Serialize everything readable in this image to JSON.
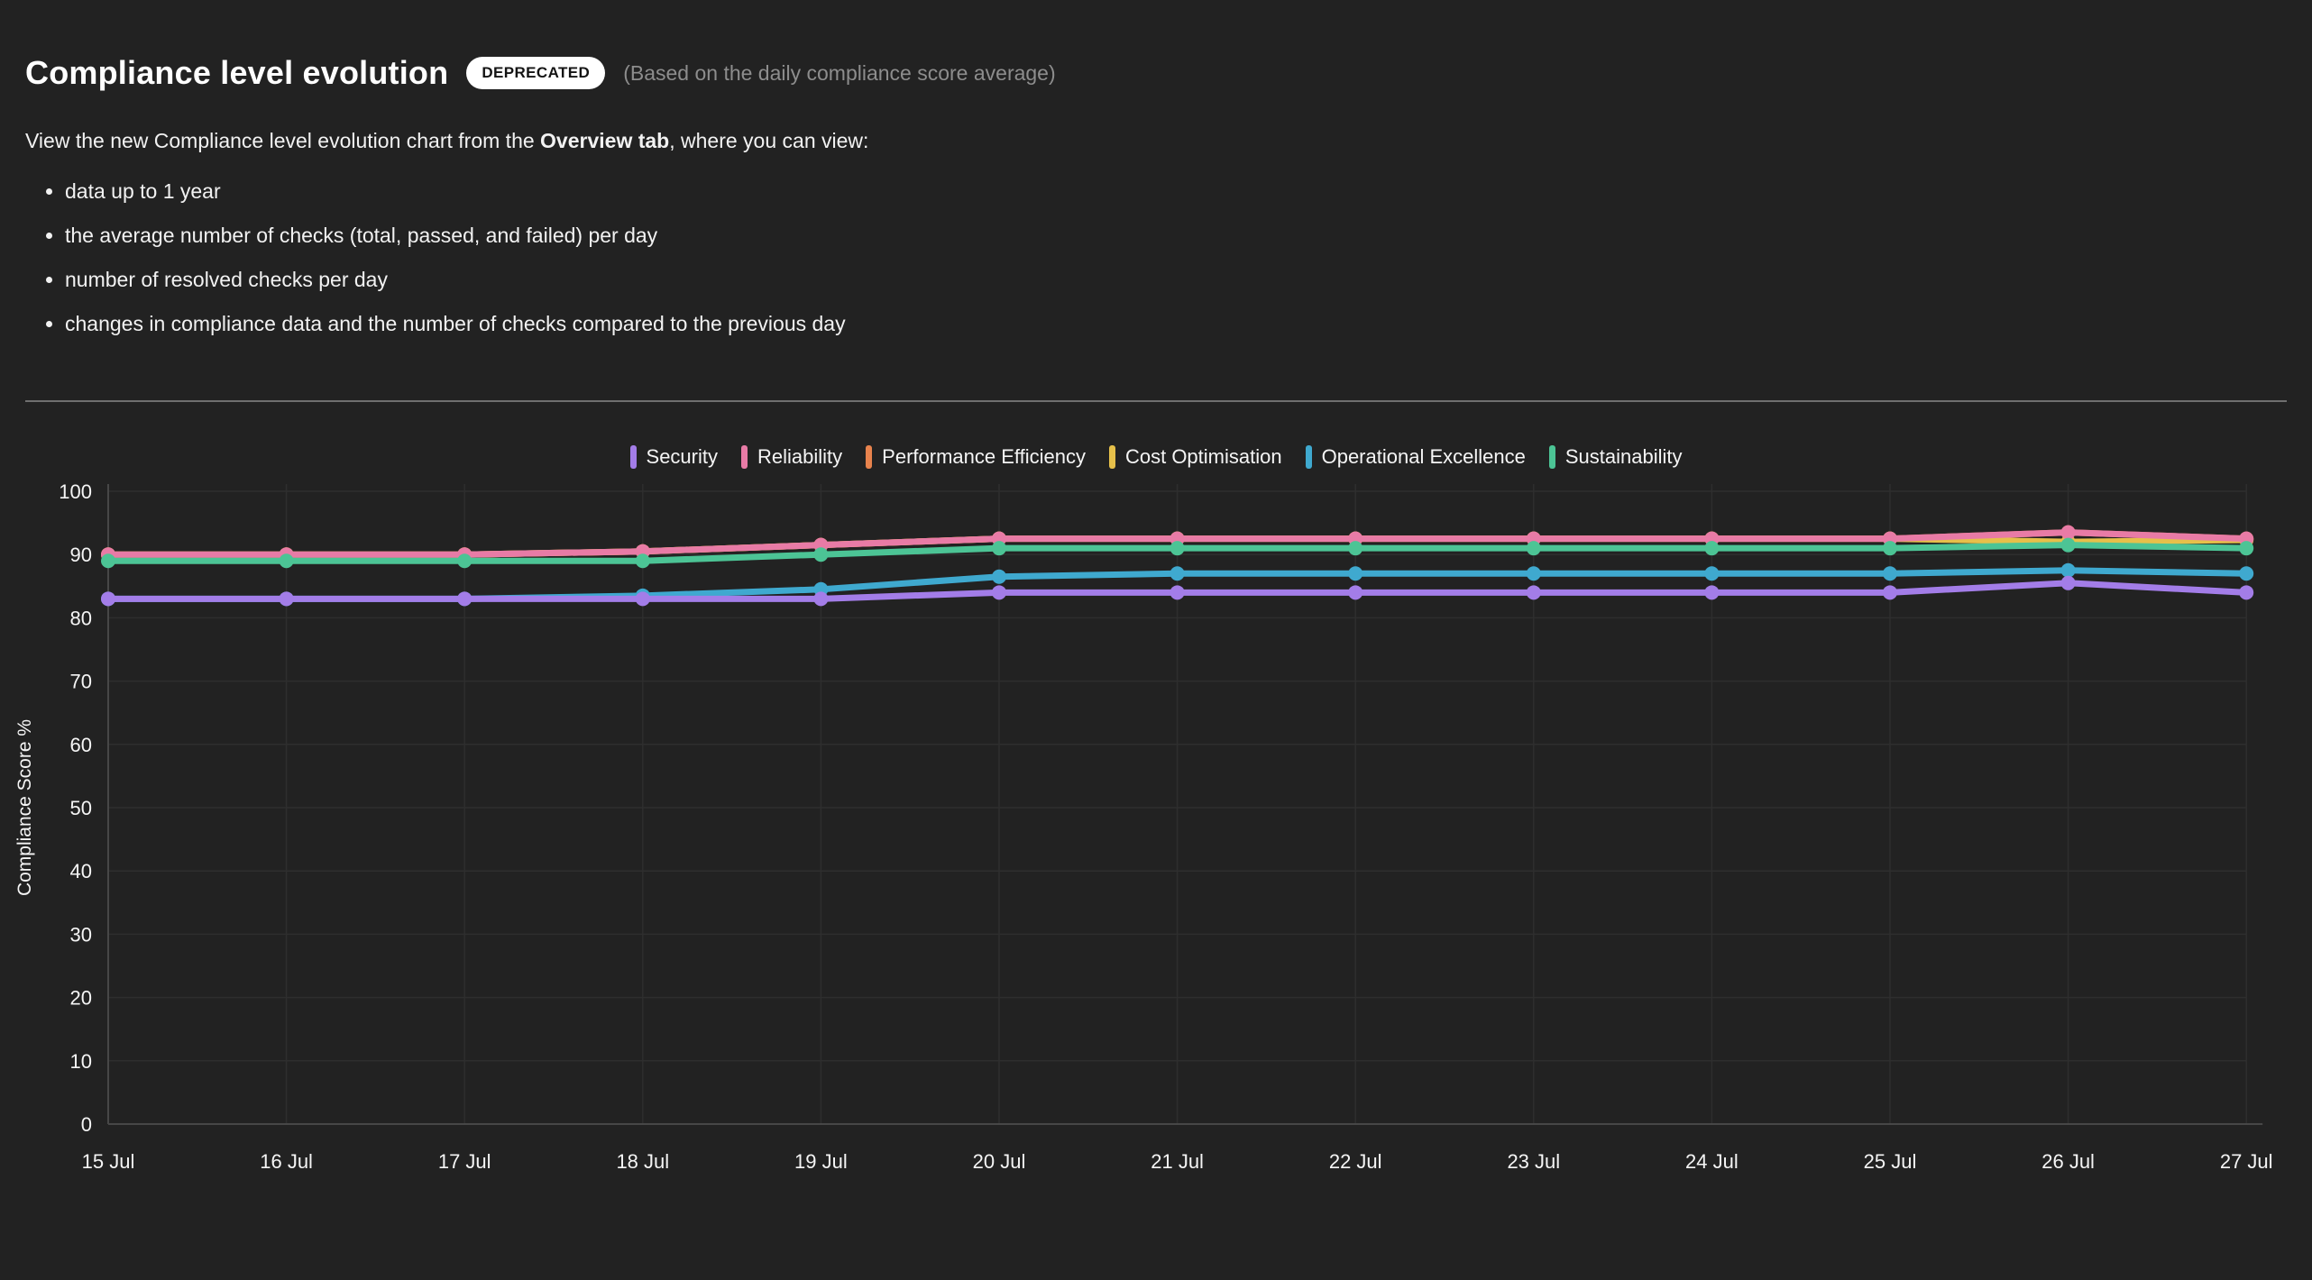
{
  "header": {
    "title": "Compliance level evolution",
    "badge": "DEPRECATED",
    "subtitle": "(Based on the daily compliance score average)",
    "description_prefix": "View the new Compliance level evolution chart from the ",
    "description_bold": "Overview tab",
    "description_suffix": ", where you can view:",
    "bullets": [
      "data up to 1 year",
      "the average number of checks (total, passed, and failed) per day",
      "number of resolved checks per day",
      "changes in compliance data and the number of checks compared to the previous day"
    ]
  },
  "chart_data": {
    "type": "line",
    "title": "",
    "xlabel": "",
    "ylabel": "Compliance Score %",
    "ylim": [
      0,
      100
    ],
    "y_ticks": [
      0,
      10,
      20,
      30,
      40,
      50,
      60,
      70,
      80,
      90,
      100
    ],
    "grid": true,
    "legend_position": "top",
    "marker": "circle",
    "categories": [
      "15 Jul",
      "16 Jul",
      "17 Jul",
      "18 Jul",
      "19 Jul",
      "20 Jul",
      "21 Jul",
      "22 Jul",
      "23 Jul",
      "24 Jul",
      "25 Jul",
      "26 Jul",
      "27 Jul"
    ],
    "series": [
      {
        "name": "Security",
        "color": "#a37de8",
        "values": [
          83,
          83,
          83,
          83,
          83,
          84,
          84,
          84,
          84,
          84,
          84,
          85.5,
          84
        ]
      },
      {
        "name": "Reliability",
        "color": "#e87ba6",
        "values": [
          90,
          90,
          90,
          90.5,
          91.5,
          92.5,
          92.5,
          92.5,
          92.5,
          92.5,
          92.5,
          93.5,
          92.5
        ]
      },
      {
        "name": "Performance Efficiency",
        "color": "#e8834d",
        "values": [
          90,
          90,
          90,
          90.5,
          91.5,
          92.5,
          92.5,
          92.5,
          92.5,
          92.5,
          92.5,
          93.5,
          92.5
        ]
      },
      {
        "name": "Cost Optimisation",
        "color": "#e6c04a",
        "values": [
          90,
          90,
          90,
          90.5,
          91.5,
          92.5,
          92.5,
          92.5,
          92.5,
          92.5,
          92.5,
          92,
          92.3
        ]
      },
      {
        "name": "Operational Excellence",
        "color": "#3fa9cf",
        "values": [
          83,
          83,
          83,
          83.5,
          84.5,
          86.5,
          87,
          87,
          87,
          87,
          87,
          87.5,
          87
        ]
      },
      {
        "name": "Sustainability",
        "color": "#4cc495",
        "values": [
          89,
          89,
          89,
          89,
          90,
          91,
          91,
          91,
          91,
          91,
          91,
          91.5,
          91
        ]
      }
    ]
  }
}
